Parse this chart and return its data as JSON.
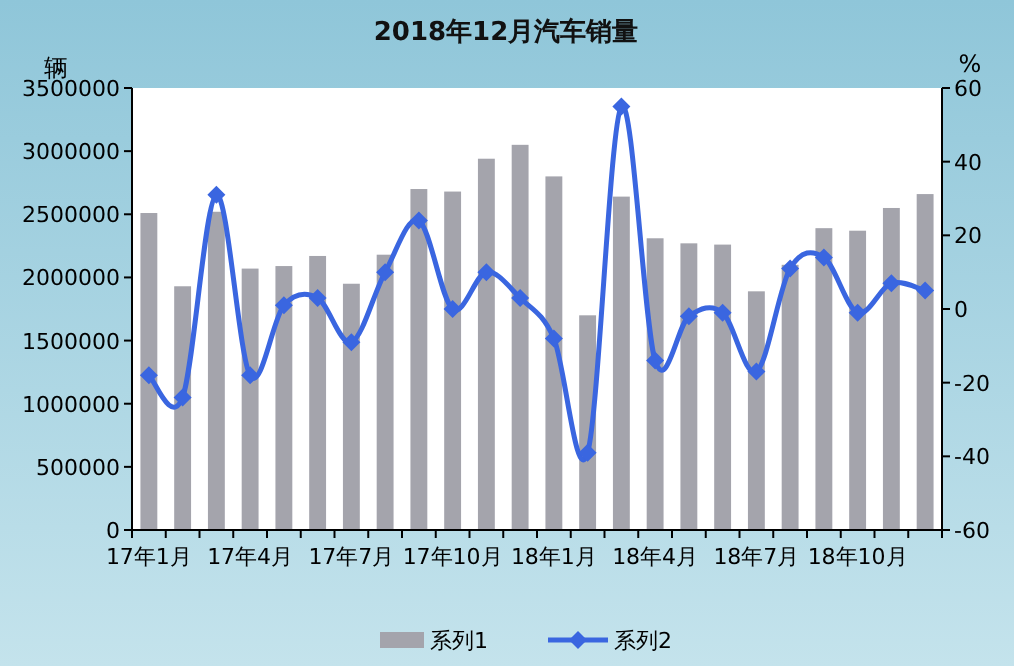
{
  "chart_data": {
    "type": "bar",
    "title": "2018年12月汽车销量",
    "ylabel": "辆",
    "y2label": "%",
    "categories": [
      "17年1月",
      null,
      null,
      "17年4月",
      null,
      null,
      "17年7月",
      null,
      null,
      "17年10月",
      null,
      null,
      "18年1月",
      null,
      null,
      "18年4月",
      null,
      null,
      "18年7月",
      null,
      null,
      "18年10月",
      null,
      null
    ],
    "series": [
      {
        "name": "系列1",
        "color": "#a4a4ac",
        "values": [
          2510000,
          1930000,
          2520000,
          2070000,
          2090000,
          2170000,
          1950000,
          2180000,
          2700000,
          2680000,
          2940000,
          3050000,
          2800000,
          1700000,
          2640000,
          2310000,
          2270000,
          2260000,
          1890000,
          2100000,
          2390000,
          2370000,
          2550000,
          2660000
        ]
      },
      {
        "name": "系列2",
        "type": "line",
        "axis": "y2",
        "color": "#3a66e0",
        "marker": "diamond",
        "values": [
          -18,
          -24,
          31,
          -18,
          1,
          3,
          -9,
          10,
          24,
          0,
          10,
          3,
          -8,
          -39,
          55,
          -14,
          -2,
          -1,
          -17,
          11,
          14,
          -1,
          7,
          5
        ]
      }
    ],
    "ylim": [
      0,
      3500000
    ],
    "yticks": [
      0,
      500000,
      1000000,
      1500000,
      2000000,
      2500000,
      3000000,
      3500000
    ],
    "y2lim": [
      -60,
      60
    ],
    "y2ticks": [
      -60,
      -40,
      -20,
      0,
      20,
      40,
      60
    ],
    "legend": "bottom",
    "grid": false
  }
}
